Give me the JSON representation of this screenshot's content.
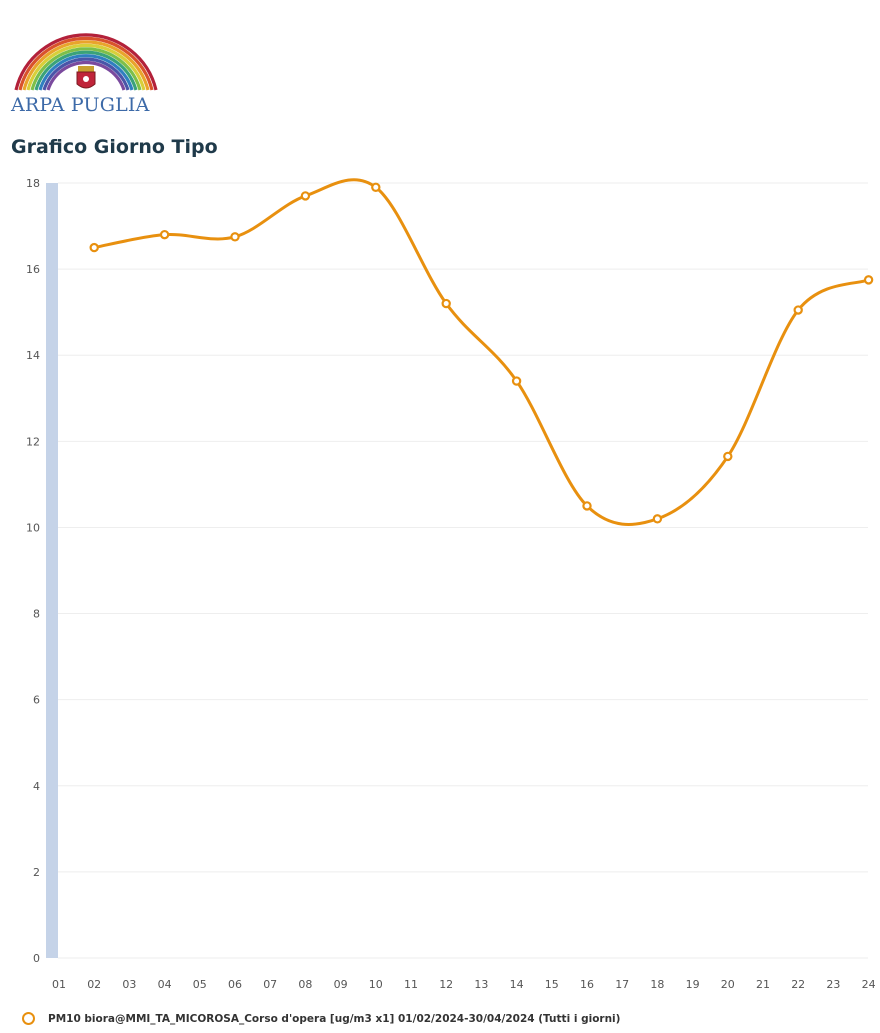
{
  "header": {
    "logo_text": "ARPA PUGLIA",
    "title": "Grafico Giorno Tipo"
  },
  "colors": {
    "series": "#e8900f",
    "axis_band": "#c5d3e8",
    "grid": "#eeeeee",
    "title": "#1f3a4a",
    "logo_text": "#3d6aa8"
  },
  "legend": {
    "label": "PM10 biora@MMI_TA_MICOROSA_Corso d'opera [ug/m3 x1] 01/02/2024-30/04/2024 (Tutti i giorni)"
  },
  "chart_data": {
    "type": "line",
    "title": "Grafico Giorno Tipo",
    "xlabel": "",
    "ylabel": "",
    "categories": [
      "01",
      "02",
      "03",
      "04",
      "05",
      "06",
      "07",
      "08",
      "09",
      "10",
      "11",
      "12",
      "13",
      "14",
      "15",
      "16",
      "17",
      "18",
      "19",
      "20",
      "21",
      "22",
      "23",
      "24"
    ],
    "yticks": [
      "0",
      "2",
      "4",
      "6",
      "8",
      "10",
      "12",
      "14",
      "16",
      "18"
    ],
    "ylim": [
      0,
      18
    ],
    "grid": true,
    "legend_position": "bottom-left",
    "series": [
      {
        "name": "PM10 biora@MMI_TA_MICOROSA_Corso d'opera [ug/m3 x1] 01/02/2024-30/04/2024 (Tutti i giorni)",
        "x": [
          "02",
          "04",
          "06",
          "08",
          "10",
          "12",
          "14",
          "16",
          "18",
          "20",
          "22",
          "24"
        ],
        "values": [
          16.5,
          16.8,
          16.75,
          17.7,
          17.9,
          15.2,
          13.4,
          10.5,
          10.2,
          11.65,
          15.05,
          15.75
        ]
      }
    ]
  }
}
